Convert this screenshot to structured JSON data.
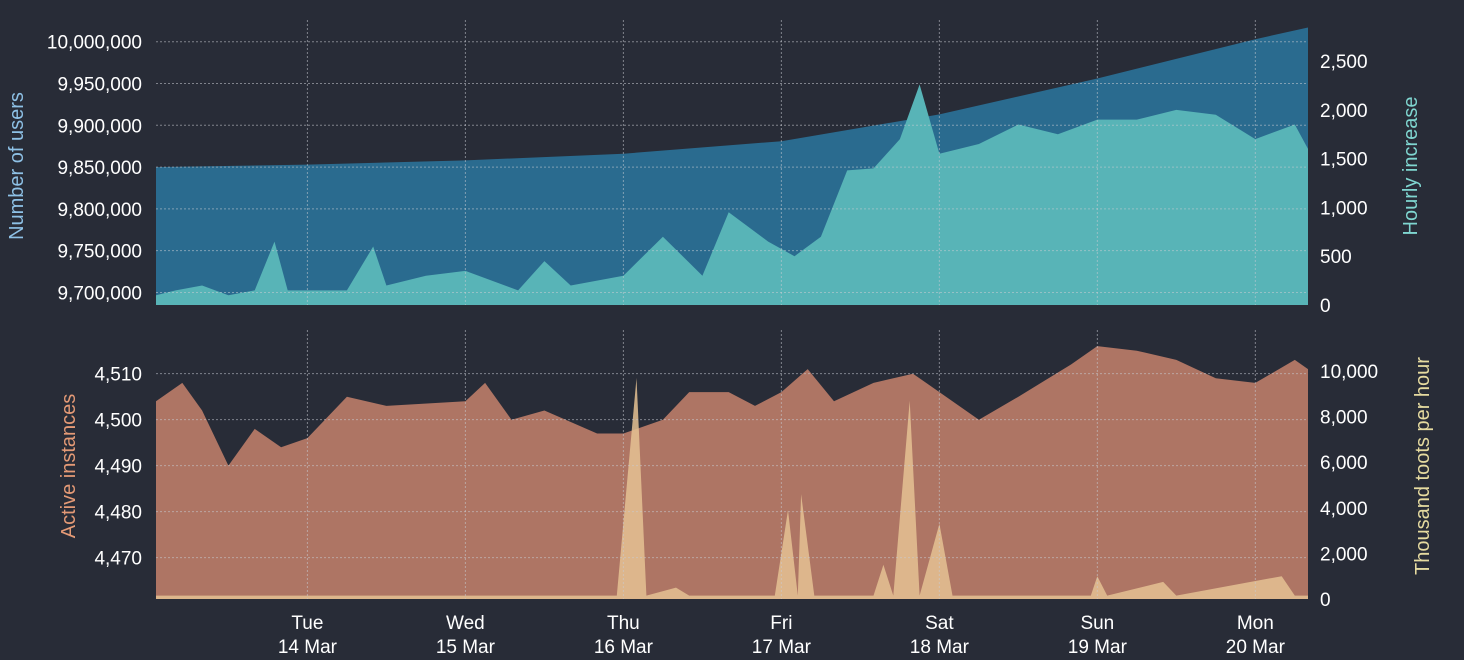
{
  "chart_data": [
    {
      "type": "area",
      "ylabel": "Number of users",
      "y2label": "Hourly increase",
      "x_range": [
        "2023-03-13 01:00",
        "2023-03-20 08:00"
      ],
      "ylim": [
        9685000,
        10020000
      ],
      "y2lim": [
        0,
        2870
      ],
      "y_ticks": [
        9700000,
        9750000,
        9800000,
        9850000,
        9900000,
        9950000,
        10000000
      ],
      "y_tick_labels": [
        "9,700,000",
        "9,750,000",
        "9,800,000",
        "9,850,000",
        "9,900,000",
        "9,950,000",
        "10,000,000"
      ],
      "y2_ticks": [
        0,
        500,
        1000,
        1500,
        2000,
        2500
      ],
      "y2_tick_labels": [
        "0",
        "500",
        "1,000",
        "1,500",
        "2,000",
        "2,500"
      ],
      "grid": true,
      "series": [
        {
          "axis": "left",
          "color": "#2a6b8f",
          "points": [
            [
              "2023-03-13 01:00",
              9850000
            ],
            [
              "2023-03-14 00:00",
              9853000
            ],
            [
              "2023-03-15 00:00",
              9858000
            ],
            [
              "2023-03-16 00:00",
              9866000
            ],
            [
              "2023-03-17 00:00",
              9881000
            ],
            [
              "2023-03-18 00:00",
              9913000
            ],
            [
              "2023-03-19 00:00",
              9956000
            ],
            [
              "2023-03-20 00:00",
              10003000
            ],
            [
              "2023-03-20 08:00",
              10017000
            ]
          ]
        },
        {
          "axis": "right",
          "color": "#58b4b7",
          "points": [
            [
              "2023-03-13 01:00",
              100
            ],
            [
              "2023-03-13 04:00",
              150
            ],
            [
              "2023-03-13 08:00",
              200
            ],
            [
              "2023-03-13 12:00",
              100
            ],
            [
              "2023-03-13 16:00",
              150
            ],
            [
              "2023-03-13 19:00",
              650
            ],
            [
              "2023-03-13 21:00",
              150
            ],
            [
              "2023-03-14 06:00",
              150
            ],
            [
              "2023-03-14 10:00",
              600
            ],
            [
              "2023-03-14 12:00",
              200
            ],
            [
              "2023-03-14 18:00",
              300
            ],
            [
              "2023-03-15 00:00",
              350
            ],
            [
              "2023-03-15 08:00",
              150
            ],
            [
              "2023-03-15 12:00",
              450
            ],
            [
              "2023-03-15 16:00",
              200
            ],
            [
              "2023-03-16 00:00",
              300
            ],
            [
              "2023-03-16 06:00",
              700
            ],
            [
              "2023-03-16 12:00",
              300
            ],
            [
              "2023-03-16 16:00",
              950
            ],
            [
              "2023-03-16 22:00",
              650
            ],
            [
              "2023-03-17 02:00",
              500
            ],
            [
              "2023-03-17 06:00",
              700
            ],
            [
              "2023-03-17 10:00",
              1380
            ],
            [
              "2023-03-17 14:00",
              1400
            ],
            [
              "2023-03-17 18:00",
              1700
            ],
            [
              "2023-03-17 21:00",
              2260
            ],
            [
              "2023-03-18 00:00",
              1550
            ],
            [
              "2023-03-18 06:00",
              1650
            ],
            [
              "2023-03-18 12:00",
              1850
            ],
            [
              "2023-03-18 18:00",
              1750
            ],
            [
              "2023-03-19 00:00",
              1900
            ],
            [
              "2023-03-19 06:00",
              1900
            ],
            [
              "2023-03-19 12:00",
              2000
            ],
            [
              "2023-03-19 18:00",
              1950
            ],
            [
              "2023-03-20 00:00",
              1700
            ],
            [
              "2023-03-20 06:00",
              1850
            ],
            [
              "2023-03-20 08:00",
              1600
            ]
          ]
        }
      ]
    },
    {
      "type": "area",
      "ylabel": "Active instances",
      "y2label": "Thousand toots per hour",
      "x_range": [
        "2023-03-13 01:00",
        "2023-03-20 08:00"
      ],
      "ylim": [
        4461,
        4519.5
      ],
      "y2lim": [
        0,
        11800
      ],
      "y_ticks": [
        4470,
        4480,
        4490,
        4500,
        4510
      ],
      "y_tick_labels": [
        "4,470",
        "4,480",
        "4,490",
        "4,500",
        "4,510"
      ],
      "y2_ticks": [
        0,
        2000,
        4000,
        6000,
        8000,
        10000
      ],
      "y2_tick_labels": [
        "0",
        "2,000",
        "4,000",
        "6,000",
        "8,000",
        "10,000"
      ],
      "x_tick_labels": [
        [
          "Tue",
          "14 Mar"
        ],
        [
          "Wed",
          "15 Mar"
        ],
        [
          "Thu",
          "16 Mar"
        ],
        [
          "Fri",
          "17 Mar"
        ],
        [
          "Sat",
          "18 Mar"
        ],
        [
          "Sun",
          "19 Mar"
        ],
        [
          "Mon",
          "20 Mar"
        ]
      ],
      "x_ticks": [
        "2023-03-14 00:00",
        "2023-03-15 00:00",
        "2023-03-16 00:00",
        "2023-03-17 00:00",
        "2023-03-18 00:00",
        "2023-03-19 00:00",
        "2023-03-20 00:00"
      ],
      "grid": true,
      "series": [
        {
          "axis": "left",
          "color": "#ae7564",
          "points": [
            [
              "2023-03-13 01:00",
              4504
            ],
            [
              "2023-03-13 05:00",
              4508
            ],
            [
              "2023-03-13 08:00",
              4502
            ],
            [
              "2023-03-13 12:00",
              4490
            ],
            [
              "2023-03-13 16:00",
              4498
            ],
            [
              "2023-03-13 20:00",
              4494
            ],
            [
              "2023-03-14 00:00",
              4496
            ],
            [
              "2023-03-14 06:00",
              4505
            ],
            [
              "2023-03-14 12:00",
              4503
            ],
            [
              "2023-03-15 00:00",
              4504
            ],
            [
              "2023-03-15 03:00",
              4508
            ],
            [
              "2023-03-15 07:00",
              4500
            ],
            [
              "2023-03-15 12:00",
              4502
            ],
            [
              "2023-03-15 20:00",
              4497
            ],
            [
              "2023-03-16 00:00",
              4497
            ],
            [
              "2023-03-16 06:00",
              4500
            ],
            [
              "2023-03-16 10:00",
              4506
            ],
            [
              "2023-03-16 16:00",
              4506
            ],
            [
              "2023-03-16 20:00",
              4503
            ],
            [
              "2023-03-17 00:00",
              4506
            ],
            [
              "2023-03-17 04:00",
              4511
            ],
            [
              "2023-03-17 08:00",
              4504
            ],
            [
              "2023-03-17 14:00",
              4508
            ],
            [
              "2023-03-17 20:00",
              4510
            ],
            [
              "2023-03-18 00:00",
              4506
            ],
            [
              "2023-03-18 06:00",
              4500
            ],
            [
              "2023-03-18 12:00",
              4505
            ],
            [
              "2023-03-18 20:00",
              4512
            ],
            [
              "2023-03-19 00:00",
              4516
            ],
            [
              "2023-03-19 06:00",
              4515
            ],
            [
              "2023-03-19 12:00",
              4513
            ],
            [
              "2023-03-19 18:00",
              4509
            ],
            [
              "2023-03-20 00:00",
              4508
            ],
            [
              "2023-03-20 06:00",
              4513
            ],
            [
              "2023-03-20 08:00",
              4511
            ]
          ]
        },
        {
          "axis": "right",
          "color": "#e5c293",
          "points": [
            [
              "2023-03-13 01:00",
              150
            ],
            [
              "2023-03-15 23:00",
              150
            ],
            [
              "2023-03-16 02:00",
              9700
            ],
            [
              "2023-03-16 03:30",
              150
            ],
            [
              "2023-03-16 08:00",
              500
            ],
            [
              "2023-03-16 10:00",
              150
            ],
            [
              "2023-03-16 23:00",
              150
            ],
            [
              "2023-03-17 01:00",
              3900
            ],
            [
              "2023-03-17 02:30",
              150
            ],
            [
              "2023-03-17 03:00",
              4600
            ],
            [
              "2023-03-17 05:00",
              150
            ],
            [
              "2023-03-17 14:00",
              150
            ],
            [
              "2023-03-17 15:30",
              1500
            ],
            [
              "2023-03-17 17:00",
              150
            ],
            [
              "2023-03-17 19:30",
              8700
            ],
            [
              "2023-03-17 21:00",
              150
            ],
            [
              "2023-03-18 00:00",
              3300
            ],
            [
              "2023-03-18 02:00",
              150
            ],
            [
              "2023-03-18 23:00",
              150
            ],
            [
              "2023-03-19 00:00",
              1000
            ],
            [
              "2023-03-19 01:30",
              150
            ],
            [
              "2023-03-19 10:00",
              750
            ],
            [
              "2023-03-19 12:00",
              150
            ],
            [
              "2023-03-20 04:00",
              1000
            ],
            [
              "2023-03-20 06:00",
              150
            ],
            [
              "2023-03-20 08:00",
              150
            ]
          ]
        }
      ]
    }
  ]
}
